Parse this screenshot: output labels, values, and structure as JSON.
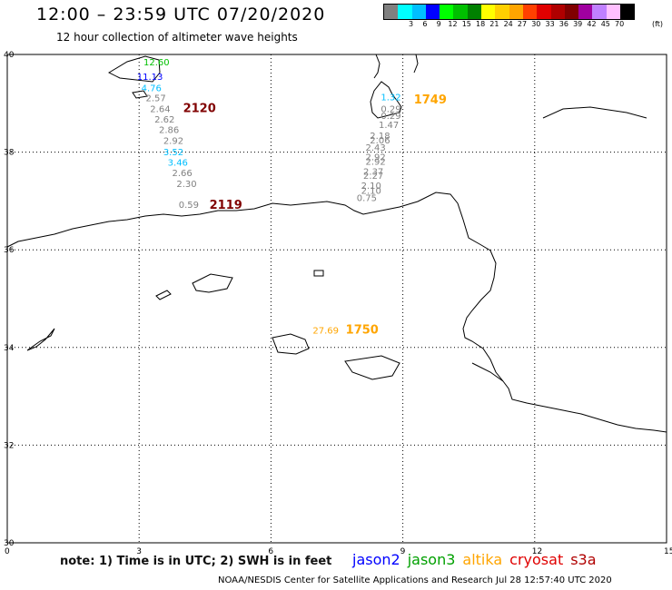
{
  "header": {
    "title": "12:00 – 23:59 UTC 07/20/2020",
    "subtitle": "12 hour collection of altimeter wave heights"
  },
  "colorbar": {
    "unit": "(ft)",
    "swatches": [
      "#808080",
      "#00ffff",
      "#00bfff",
      "#0000ff",
      "#00ff00",
      "#00c000",
      "#008000",
      "#ffff00",
      "#ffd000",
      "#ffa500",
      "#ff4000",
      "#e00000",
      "#b00000",
      "#800000",
      "#a000a0",
      "#c080ff",
      "#ffc0ff",
      "#000000"
    ],
    "ticks": [
      "3",
      "6",
      "9",
      "12",
      "15",
      "18",
      "21",
      "24",
      "27",
      "30",
      "33",
      "36",
      "39",
      "42",
      "45",
      "70"
    ]
  },
  "axes": {
    "lat_labels": [
      "40",
      "38",
      "36",
      "34",
      "32",
      "30"
    ],
    "lon_labels": [
      "0",
      "3",
      "6",
      "9",
      "12",
      "15"
    ]
  },
  "observations": [
    {
      "text": "12.60",
      "color": "#00c000",
      "lon": 3.1,
      "lat": 39.78
    },
    {
      "text": "11.13",
      "color": "#0000ff",
      "lon": 2.95,
      "lat": 39.48
    },
    {
      "text": "4.76",
      "color": "#00bfff",
      "lon": 3.05,
      "lat": 39.25
    },
    {
      "text": "2.57",
      "color": "#808080",
      "lon": 3.15,
      "lat": 39.04
    },
    {
      "text": "2.64",
      "color": "#808080",
      "lon": 3.25,
      "lat": 38.82
    },
    {
      "text": "2.62",
      "color": "#808080",
      "lon": 3.35,
      "lat": 38.61
    },
    {
      "text": "2.86",
      "color": "#808080",
      "lon": 3.45,
      "lat": 38.39
    },
    {
      "text": "2.92",
      "color": "#808080",
      "lon": 3.55,
      "lat": 38.17
    },
    {
      "text": "3.52",
      "color": "#00bfff",
      "lon": 3.55,
      "lat": 37.94
    },
    {
      "text": "3.46",
      "color": "#00bfff",
      "lon": 3.65,
      "lat": 37.72
    },
    {
      "text": "2.66",
      "color": "#808080",
      "lon": 3.75,
      "lat": 37.51
    },
    {
      "text": "2.30",
      "color": "#808080",
      "lon": 3.85,
      "lat": 37.29
    },
    {
      "text": "0.59",
      "color": "#808080",
      "lon": 3.9,
      "lat": 36.86
    },
    {
      "text": "1.32",
      "color": "#00bfff",
      "lon": 8.5,
      "lat": 39.06
    },
    {
      "text": "0.29",
      "color": "#808080",
      "lon": 8.5,
      "lat": 38.82
    },
    {
      "text": "0.29",
      "color": "#808080",
      "lon": 8.5,
      "lat": 38.68
    },
    {
      "text": "1.47",
      "color": "#808080",
      "lon": 8.45,
      "lat": 38.49
    },
    {
      "text": "2.18",
      "color": "#808080",
      "lon": 8.25,
      "lat": 38.27
    },
    {
      "text": "2.06",
      "color": "#808080",
      "lon": 8.25,
      "lat": 38.18
    },
    {
      "text": "2.43",
      "color": "#808080",
      "lon": 8.15,
      "lat": 38.03
    },
    {
      "text": "2.92",
      "color": "#808080",
      "lon": 8.15,
      "lat": 37.83
    },
    {
      "text": "2.92",
      "color": "#808080",
      "lon": 8.15,
      "lat": 37.74
    },
    {
      "text": "2.37",
      "color": "#808080",
      "lon": 8.1,
      "lat": 37.54
    },
    {
      "text": "2.27",
      "color": "#808080",
      "lon": 8.1,
      "lat": 37.45
    },
    {
      "text": "2.10",
      "color": "#808080",
      "lon": 8.05,
      "lat": 37.25
    },
    {
      "text": "2.10",
      "color": "#808080",
      "lon": 8.05,
      "lat": 37.15
    },
    {
      "text": "0.75",
      "color": "#808080",
      "lon": 7.95,
      "lat": 37.0
    },
    {
      "text": "27.69",
      "color": "#ffa500",
      "lon": 6.95,
      "lat": 34.28
    }
  ],
  "pass_labels": [
    {
      "text": "2120",
      "color": "#800000",
      "lon": 4.0,
      "lat": 38.82
    },
    {
      "text": "2119",
      "color": "#800000",
      "lon": 4.6,
      "lat": 36.84
    },
    {
      "text": "1749",
      "color": "#ffa500",
      "lon": 9.25,
      "lat": 39.0
    },
    {
      "text": "1750",
      "color": "#ffa500",
      "lon": 7.7,
      "lat": 34.28
    }
  ],
  "footer": {
    "note": "note: 1) Time is in UTC; 2) SWH is in feet",
    "satellites": [
      {
        "name": "jason2",
        "color": "#0000ff"
      },
      {
        "name": "jason3",
        "color": "#00a000"
      },
      {
        "name": "altika",
        "color": "#ffa500"
      },
      {
        "name": "cryosat",
        "color": "#e00000"
      },
      {
        "name": "s3a",
        "color": "#b00000"
      }
    ],
    "credit": "NOAA/NESDIS Center for Satellite Applications and Research   Jul 28 12:57:40 UTC 2020"
  }
}
